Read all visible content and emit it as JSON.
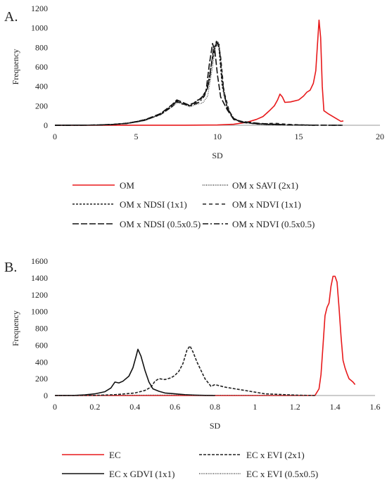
{
  "chart_data": [
    {
      "type": "line",
      "panel_label": "A.",
      "xlabel": "SD",
      "ylabel": "Frequency",
      "xlim": [
        0,
        20
      ],
      "ylim": [
        0,
        1200
      ],
      "xticks": [
        "0",
        "5",
        "10",
        "15",
        "20"
      ],
      "yticks": [
        "0",
        "200",
        "400",
        "600",
        "800",
        "1000",
        "1200"
      ],
      "grid": false,
      "legend_position": "bottom",
      "series": [
        {
          "name": "OM",
          "color": "#e8191b",
          "dash": "solid",
          "points": [
            [
              0,
              0
            ],
            [
              8,
              1
            ],
            [
              10,
              3
            ],
            [
              11,
              10
            ],
            [
              11.8,
              30
            ],
            [
              12.4,
              60
            ],
            [
              12.8,
              90
            ],
            [
              13.2,
              150
            ],
            [
              13.5,
              200
            ],
            [
              13.7,
              260
            ],
            [
              13.85,
              320
            ],
            [
              14,
              290
            ],
            [
              14.15,
              235
            ],
            [
              14.5,
              240
            ],
            [
              15,
              260
            ],
            [
              15.3,
              300
            ],
            [
              15.5,
              340
            ],
            [
              15.7,
              360
            ],
            [
              15.9,
              430
            ],
            [
              16.05,
              560
            ],
            [
              16.15,
              820
            ],
            [
              16.25,
              1080
            ],
            [
              16.35,
              900
            ],
            [
              16.45,
              400
            ],
            [
              16.55,
              150
            ],
            [
              16.8,
              120
            ],
            [
              17.1,
              90
            ],
            [
              17.4,
              60
            ],
            [
              17.6,
              40
            ],
            [
              17.75,
              45
            ]
          ]
        },
        {
          "name": "OM x SAVI (2x1)",
          "color": "#333333",
          "dash": "1,1.5",
          "points": [
            [
              0,
              0
            ],
            [
              2,
              1
            ],
            [
              3,
              5
            ],
            [
              4,
              15
            ],
            [
              5,
              40
            ],
            [
              6,
              80
            ],
            [
              6.8,
              150
            ],
            [
              7.3,
              200
            ],
            [
              7.6,
              240
            ],
            [
              7.9,
              215
            ],
            [
              8.3,
              190
            ],
            [
              8.7,
              215
            ],
            [
              9.1,
              230
            ],
            [
              9.4,
              300
            ],
            [
              9.7,
              600
            ],
            [
              9.9,
              830
            ],
            [
              10.05,
              860
            ],
            [
              10.2,
              700
            ],
            [
              10.4,
              300
            ],
            [
              10.7,
              150
            ],
            [
              11,
              60
            ],
            [
              11.5,
              30
            ],
            [
              12,
              20
            ],
            [
              12.5,
              10
            ],
            [
              13,
              4
            ],
            [
              13.5,
              5
            ],
            [
              14,
              2
            ],
            [
              15,
              1
            ],
            [
              16,
              0
            ]
          ]
        },
        {
          "name": "OM x NDSI (1x1)",
          "color": "#222222",
          "dash": "3,2",
          "points": [
            [
              0,
              0
            ],
            [
              2.5,
              2
            ],
            [
              3.5,
              8
            ],
            [
              4.5,
              20
            ],
            [
              5.5,
              50
            ],
            [
              6.5,
              110
            ],
            [
              7.2,
              190
            ],
            [
              7.5,
              250
            ],
            [
              7.8,
              220
            ],
            [
              8.3,
              200
            ],
            [
              8.8,
              260
            ],
            [
              9.1,
              280
            ],
            [
              9.4,
              400
            ],
            [
              9.7,
              700
            ],
            [
              9.95,
              870
            ],
            [
              10.1,
              790
            ],
            [
              10.3,
              400
            ],
            [
              10.6,
              180
            ],
            [
              11,
              70
            ],
            [
              11.5,
              30
            ],
            [
              12.5,
              15
            ],
            [
              13.5,
              8
            ],
            [
              14.5,
              3
            ],
            [
              16,
              0
            ]
          ]
        },
        {
          "name": "OM x NDVI (1x1)",
          "color": "#222222",
          "dash": "5,4",
          "points": [
            [
              0,
              0
            ],
            [
              2.5,
              2
            ],
            [
              3.5,
              8
            ],
            [
              4.5,
              20
            ],
            [
              5.5,
              50
            ],
            [
              6.5,
              110
            ],
            [
              7.2,
              190
            ],
            [
              7.5,
              240
            ],
            [
              7.9,
              220
            ],
            [
              8.3,
              200
            ],
            [
              8.8,
              250
            ],
            [
              9.1,
              300
            ],
            [
              9.4,
              380
            ],
            [
              9.7,
              690
            ],
            [
              9.9,
              810
            ],
            [
              10.05,
              850
            ],
            [
              10.2,
              700
            ],
            [
              10.4,
              350
            ],
            [
              10.7,
              160
            ],
            [
              11,
              60
            ],
            [
              11.5,
              30
            ],
            [
              12.5,
              12
            ],
            [
              13.5,
              20
            ],
            [
              14.5,
              8
            ],
            [
              16,
              0
            ]
          ]
        },
        {
          "name": "OM x NDSI (0.5x0.5)",
          "color": "#111111",
          "dash": "9,3",
          "points": [
            [
              0,
              0
            ],
            [
              2.5,
              2
            ],
            [
              3.5,
              8
            ],
            [
              4.5,
              20
            ],
            [
              5.5,
              55
            ],
            [
              6.5,
              120
            ],
            [
              7.2,
              210
            ],
            [
              7.5,
              260
            ],
            [
              7.8,
              240
            ],
            [
              8.2,
              210
            ],
            [
              8.6,
              230
            ],
            [
              9,
              280
            ],
            [
              9.3,
              350
            ],
            [
              9.5,
              620
            ],
            [
              9.7,
              840
            ],
            [
              9.85,
              760
            ],
            [
              10,
              520
            ],
            [
              10.2,
              290
            ],
            [
              10.6,
              160
            ],
            [
              11,
              60
            ],
            [
              11.5,
              40
            ],
            [
              12.5,
              20
            ],
            [
              13.5,
              10
            ],
            [
              14.5,
              3
            ],
            [
              17.7,
              0
            ]
          ]
        },
        {
          "name": "OM x NDVI (0.5x0.5)",
          "color": "#111111",
          "dash": "8,3,2,3",
          "points": [
            [
              0,
              0
            ],
            [
              2.5,
              2
            ],
            [
              3.5,
              8
            ],
            [
              4.5,
              20
            ],
            [
              5.5,
              50
            ],
            [
              6.5,
              115
            ],
            [
              7.2,
              200
            ],
            [
              7.5,
              250
            ],
            [
              7.9,
              225
            ],
            [
              8.4,
              200
            ],
            [
              8.9,
              240
            ],
            [
              9.2,
              300
            ],
            [
              9.5,
              450
            ],
            [
              9.75,
              780
            ],
            [
              9.95,
              850
            ],
            [
              10.1,
              830
            ],
            [
              10.3,
              450
            ],
            [
              10.6,
              170
            ],
            [
              11,
              70
            ],
            [
              11.5,
              35
            ],
            [
              12.5,
              15
            ],
            [
              13.5,
              6
            ],
            [
              14.5,
              3
            ],
            [
              17.7,
              0
            ]
          ]
        }
      ],
      "legend": [
        [
          "OM",
          "OM x SAVI (2x1)"
        ],
        [
          "OM x NDSI (1x1)",
          "OM x NDVI (1x1)"
        ],
        [
          "OM x NDSI (0.5x0.5)",
          "OM x NDVI (0.5x0.5)"
        ]
      ]
    },
    {
      "type": "line",
      "panel_label": "B.",
      "xlabel": "SD",
      "ylabel": "Frequency",
      "xlim": [
        0,
        1.6
      ],
      "ylim": [
        0,
        1600
      ],
      "xticks": [
        "0",
        "0.2",
        "0.4",
        "0.6",
        "0.8",
        "1",
        "1.2",
        "1.4",
        "1.6"
      ],
      "yticks": [
        "0",
        "200",
        "400",
        "600",
        "800",
        "1000",
        "1200",
        "1400",
        "1600"
      ],
      "grid": false,
      "legend_position": "bottom",
      "series": [
        {
          "name": "EC",
          "color": "#e8191b",
          "dash": "solid",
          "points": [
            [
              0,
              0
            ],
            [
              1.25,
              0
            ],
            [
              1.3,
              2
            ],
            [
              1.32,
              80
            ],
            [
              1.33,
              250
            ],
            [
              1.34,
              600
            ],
            [
              1.35,
              950
            ],
            [
              1.36,
              1050
            ],
            [
              1.37,
              1100
            ],
            [
              1.38,
              1300
            ],
            [
              1.39,
              1420
            ],
            [
              1.4,
              1420
            ],
            [
              1.41,
              1350
            ],
            [
              1.42,
              1050
            ],
            [
              1.43,
              700
            ],
            [
              1.44,
              420
            ],
            [
              1.45,
              330
            ],
            [
              1.46,
              260
            ],
            [
              1.47,
              200
            ],
            [
              1.48,
              180
            ],
            [
              1.49,
              160
            ],
            [
              1.5,
              130
            ]
          ]
        },
        {
          "name": "EC x EVI (2x1)",
          "color": "#222222",
          "dash": "4,2",
          "points": [
            [
              0,
              0
            ],
            [
              0.2,
              2
            ],
            [
              0.3,
              10
            ],
            [
              0.4,
              30
            ],
            [
              0.45,
              60
            ],
            [
              0.48,
              100
            ],
            [
              0.5,
              170
            ],
            [
              0.52,
              200
            ],
            [
              0.55,
              190
            ],
            [
              0.58,
              210
            ],
            [
              0.6,
              240
            ],
            [
              0.62,
              290
            ],
            [
              0.64,
              380
            ],
            [
              0.66,
              540
            ],
            [
              0.675,
              590
            ],
            [
              0.69,
              520
            ],
            [
              0.71,
              400
            ],
            [
              0.73,
              300
            ],
            [
              0.75,
              200
            ],
            [
              0.78,
              110
            ],
            [
              0.8,
              130
            ],
            [
              0.85,
              100
            ],
            [
              0.9,
              80
            ],
            [
              0.95,
              60
            ],
            [
              1,
              40
            ],
            [
              1.05,
              20
            ],
            [
              1.1,
              15
            ],
            [
              1.15,
              10
            ],
            [
              1.2,
              5
            ],
            [
              1.3,
              0
            ]
          ]
        },
        {
          "name": "EC x GDVI (1x1)",
          "color": "#111111",
          "dash": "solid",
          "points": [
            [
              0,
              0
            ],
            [
              0.1,
              2
            ],
            [
              0.15,
              8
            ],
            [
              0.2,
              20
            ],
            [
              0.25,
              45
            ],
            [
              0.28,
              90
            ],
            [
              0.3,
              160
            ],
            [
              0.32,
              150
            ],
            [
              0.34,
              170
            ],
            [
              0.37,
              230
            ],
            [
              0.39,
              330
            ],
            [
              0.405,
              460
            ],
            [
              0.415,
              550
            ],
            [
              0.43,
              470
            ],
            [
              0.45,
              300
            ],
            [
              0.47,
              160
            ],
            [
              0.49,
              80
            ],
            [
              0.52,
              50
            ],
            [
              0.55,
              30
            ],
            [
              0.6,
              20
            ],
            [
              0.65,
              10
            ],
            [
              0.7,
              5
            ],
            [
              0.75,
              2
            ],
            [
              0.8,
              0
            ]
          ]
        },
        {
          "name": "EC x EVI (0.5x0.5)",
          "color": "#444444",
          "dash": "1,1.5",
          "points": [
            [
              0,
              0
            ],
            [
              0.3,
              3
            ],
            [
              0.5,
              6
            ],
            [
              0.7,
              5
            ],
            [
              0.9,
              3
            ],
            [
              1.1,
              1
            ],
            [
              1.3,
              0
            ]
          ]
        }
      ],
      "legend": [
        [
          "EC",
          "EC x EVI (2x1)"
        ],
        [
          "EC x GDVI (1x1)",
          "EC x EVI (0.5x0.5)"
        ]
      ]
    }
  ]
}
